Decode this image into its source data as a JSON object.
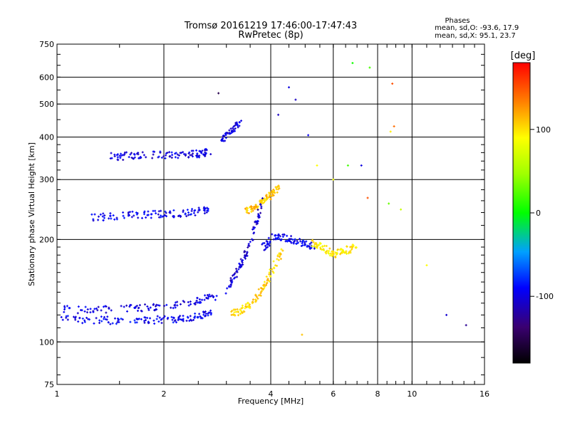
{
  "chart_data": {
    "type": "scatter",
    "title": "Tromsø 20161219 17:46:00-17:47:43",
    "subtitle": "RwPretec (8p)",
    "xlabel": "Frequency [MHz]",
    "ylabel": "Stationary phase Virtual Height [km]",
    "x_scale": "log",
    "y_scale": "log",
    "xlim": [
      1,
      16
    ],
    "ylim": [
      75,
      750
    ],
    "xticks": [
      1,
      2,
      4,
      6,
      8,
      10,
      16
    ],
    "xtick_labels": [
      "1",
      "2",
      "4",
      "6",
      "8",
      "10",
      "16"
    ],
    "yticks": [
      75,
      100,
      200,
      300,
      400,
      500,
      600,
      750
    ],
    "ytick_labels": [
      "75",
      "100",
      "200",
      "300",
      "400",
      "500",
      "600",
      "750"
    ],
    "grid": true,
    "phases_box": {
      "title": "Phases",
      "line1": "mean, sd,O: -93.6, 17.9",
      "line2": "mean, sd,X:  95.1, 23.7"
    },
    "colorbar": {
      "label": "[deg]",
      "range": [
        -180,
        180
      ],
      "ticks": [
        100,
        0,
        -100
      ],
      "tick_labels": [
        "100",
        "0",
        "-100"
      ]
    },
    "traces": [
      {
        "x": [
          1.0,
          1.3,
          1.6,
          1.9,
          2.2,
          2.5,
          2.75
        ],
        "y": [
          117,
          116,
          115,
          116,
          117,
          119,
          121
        ],
        "phase": -95
      },
      {
        "x": [
          1.0,
          1.3,
          1.7,
          2.1,
          2.5,
          2.8
        ],
        "y": [
          125,
          124,
          126,
          128,
          132,
          136
        ],
        "phase": -100
      },
      {
        "x": [
          1.25,
          1.5,
          1.8,
          2.1,
          2.4,
          2.7
        ],
        "y": [
          232,
          235,
          237,
          238,
          240,
          244
        ],
        "phase": -95
      },
      {
        "x": [
          1.4,
          1.6,
          1.9,
          2.2,
          2.5,
          2.7
        ],
        "y": [
          350,
          352,
          354,
          355,
          357,
          362
        ],
        "phase": -100
      },
      {
        "x": [
          3.1,
          3.3,
          3.5,
          3.8,
          4.0,
          4.3
        ],
        "y": [
          121,
          124,
          130,
          142,
          160,
          185
        ],
        "phase": 105
      },
      {
        "x": [
          3.4,
          3.6,
          3.8,
          4.0,
          4.2
        ],
        "y": [
          240,
          248,
          257,
          270,
          285
        ],
        "phase": 110
      },
      {
        "x": [
          3.0,
          3.2,
          3.4,
          3.6,
          3.8
        ],
        "y": [
          140,
          160,
          180,
          215,
          260
        ],
        "phase": -105
      },
      {
        "x": [
          3.8,
          4.1,
          4.5,
          4.9,
          5.3
        ],
        "y": [
          190,
          205,
          200,
          195,
          190
        ],
        "phase": -95
      },
      {
        "x": [
          5.2,
          5.6,
          6.0,
          6.4,
          7.0
        ],
        "y": [
          195,
          190,
          180,
          185,
          190
        ],
        "phase": 95
      },
      {
        "x": [
          2.9,
          3.1,
          3.3
        ],
        "y": [
          390,
          420,
          445
        ],
        "phase": -100
      }
    ],
    "scattered_points": [
      {
        "x": 2.85,
        "y": 538,
        "phase": -150
      },
      {
        "x": 4.5,
        "y": 560,
        "phase": -100
      },
      {
        "x": 4.7,
        "y": 515,
        "phase": -110
      },
      {
        "x": 6.8,
        "y": 660,
        "phase": 5
      },
      {
        "x": 7.6,
        "y": 640,
        "phase": 20
      },
      {
        "x": 8.8,
        "y": 574,
        "phase": 150
      },
      {
        "x": 8.9,
        "y": 430,
        "phase": 140
      },
      {
        "x": 8.7,
        "y": 415,
        "phase": 95
      },
      {
        "x": 5.4,
        "y": 330,
        "phase": 90
      },
      {
        "x": 6.0,
        "y": 300,
        "phase": 85
      },
      {
        "x": 6.6,
        "y": 330,
        "phase": 20
      },
      {
        "x": 7.2,
        "y": 330,
        "phase": -100
      },
      {
        "x": 7.5,
        "y": 265,
        "phase": 150
      },
      {
        "x": 8.6,
        "y": 255,
        "phase": 30
      },
      {
        "x": 9.3,
        "y": 245,
        "phase": 65
      },
      {
        "x": 11.0,
        "y": 168,
        "phase": 90
      },
      {
        "x": 12.5,
        "y": 120,
        "phase": -105
      },
      {
        "x": 14.2,
        "y": 112,
        "phase": -125
      },
      {
        "x": 4.9,
        "y": 105,
        "phase": 110
      },
      {
        "x": 4.2,
        "y": 465,
        "phase": -110
      },
      {
        "x": 5.1,
        "y": 405,
        "phase": -95
      }
    ]
  }
}
